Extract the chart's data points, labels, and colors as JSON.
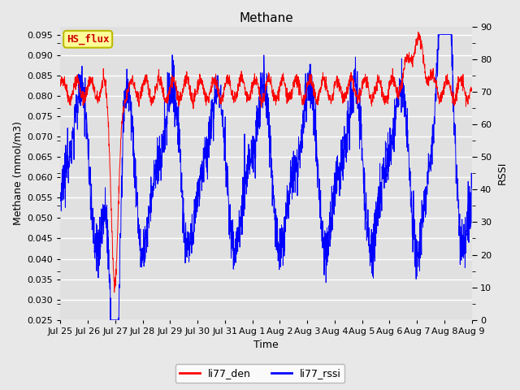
{
  "title": "Methane",
  "xlabel": "Time",
  "ylabel_left": "Methane (mmol/m3)",
  "ylabel_right": "RSSI",
  "ylim_left": [
    0.025,
    0.097
  ],
  "ylim_right": [
    0,
    90
  ],
  "fig_bg_color": "#e8e8e8",
  "plot_bg_color": "#e0e0e0",
  "grid_color": "#ffffff",
  "line_color_red": "#ff0000",
  "line_color_blue": "#0000ff",
  "legend_red": "li77_den",
  "legend_blue": "li77_rssi",
  "annotation_text": "HS_flux",
  "annotation_bg": "#ffff99",
  "annotation_border": "#bbbb00",
  "annotation_text_color": "#cc0000",
  "n_points": 2000,
  "seed": 42
}
